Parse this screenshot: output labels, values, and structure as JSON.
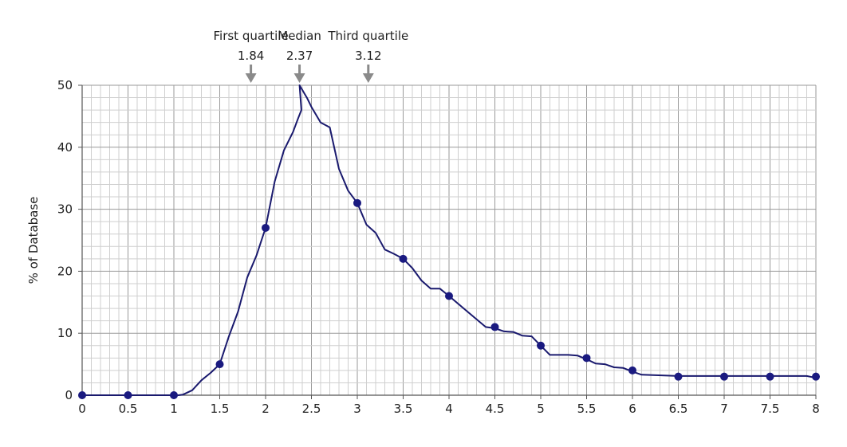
{
  "chart_data": {
    "type": "line",
    "title": "",
    "xlabel": "",
    "ylabel": "% of Database",
    "xlim": [
      0,
      8
    ],
    "ylim": [
      0,
      50
    ],
    "x_ticks": [
      "0",
      "0.5",
      "1",
      "1.5",
      "2",
      "2.5",
      "3",
      "3.5",
      "4",
      "4.5",
      "5",
      "5.5",
      "6",
      "6.5",
      "7",
      "7.5",
      "8"
    ],
    "y_ticks": [
      "0",
      "10",
      "20",
      "30",
      "40",
      "50"
    ],
    "grid": true,
    "colors": {
      "line": "#1a1a6e",
      "marker": "#1a1a80",
      "grid_major": "#9a9a9a",
      "grid_minor": "#cfcfcf",
      "arrow": "#8a8a8a"
    },
    "series": [
      {
        "line": [
          [
            0,
            0
          ],
          [
            0.5,
            0
          ],
          [
            1,
            0
          ],
          [
            1.05,
            0
          ],
          [
            1.1,
            0.1
          ],
          [
            1.2,
            0.8
          ],
          [
            1.3,
            2.4
          ],
          [
            1.4,
            3.6
          ],
          [
            1.5,
            5
          ],
          [
            1.6,
            9.5
          ],
          [
            1.7,
            13.5
          ],
          [
            1.8,
            19
          ],
          [
            1.9,
            22.5
          ],
          [
            2,
            27
          ],
          [
            2.1,
            34.5
          ],
          [
            2.2,
            39.5
          ],
          [
            2.3,
            42.5
          ],
          [
            2.35,
            44.5
          ],
          [
            2.39,
            46
          ],
          [
            2.37,
            50
          ],
          [
            2.45,
            48
          ],
          [
            2.5,
            46.5
          ],
          [
            2.6,
            44
          ],
          [
            2.7,
            43.2
          ],
          [
            2.8,
            36.5
          ],
          [
            2.9,
            33
          ],
          [
            3,
            31
          ],
          [
            3.1,
            27.5
          ],
          [
            3.2,
            26.2
          ],
          [
            3.3,
            23.5
          ],
          [
            3.4,
            22.8
          ],
          [
            3.5,
            22
          ],
          [
            3.6,
            20.5
          ],
          [
            3.7,
            18.5
          ],
          [
            3.8,
            17.2
          ],
          [
            3.9,
            17.2
          ],
          [
            4,
            16
          ],
          [
            4.2,
            13.5
          ],
          [
            4.4,
            11
          ],
          [
            4.5,
            10.8
          ],
          [
            4.6,
            10.3
          ],
          [
            4.7,
            10.2
          ],
          [
            4.8,
            9.6
          ],
          [
            4.9,
            9.5
          ],
          [
            5,
            8
          ],
          [
            5.1,
            6.5
          ],
          [
            5.3,
            6.5
          ],
          [
            5.4,
            6.4
          ],
          [
            5.5,
            5.8
          ],
          [
            5.6,
            5.1
          ],
          [
            5.7,
            5.0
          ],
          [
            5.8,
            4.5
          ],
          [
            5.9,
            4.4
          ],
          [
            6,
            3.8
          ],
          [
            6.1,
            3.3
          ],
          [
            6.5,
            3.1
          ],
          [
            7,
            3.1
          ],
          [
            7.5,
            3.1
          ],
          [
            7.9,
            3.1
          ],
          [
            8,
            2.8
          ]
        ],
        "markers": [
          [
            0,
            0
          ],
          [
            0.5,
            0
          ],
          [
            1,
            0
          ],
          [
            1.5,
            5
          ],
          [
            2,
            27
          ],
          [
            3,
            31
          ],
          [
            3.5,
            22
          ],
          [
            4,
            16
          ],
          [
            4.5,
            11
          ],
          [
            5,
            8
          ],
          [
            5.5,
            6
          ],
          [
            6,
            4
          ],
          [
            6.5,
            3
          ],
          [
            7,
            3
          ],
          [
            7.5,
            3
          ],
          [
            8,
            3
          ]
        ]
      }
    ],
    "annotations": [
      {
        "label": "First quartile",
        "value_text": "1.84",
        "x": 1.84
      },
      {
        "label": "Median",
        "value_text": "2.37",
        "x": 2.37
      },
      {
        "label": "Third quartile",
        "value_text": "3.12",
        "x": 3.12
      }
    ]
  }
}
